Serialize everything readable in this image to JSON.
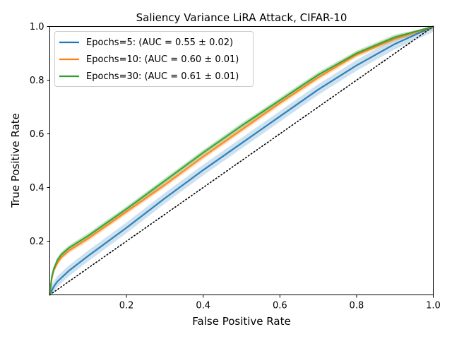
{
  "chart_data": {
    "type": "line",
    "title": "Saliency Variance LiRA Attack, CIFAR-10",
    "xlabel": "False Positive Rate",
    "ylabel": "True Positive Rate",
    "xlim": [
      0,
      1
    ],
    "ylim": [
      0,
      1
    ],
    "x_ticks": [
      0.2,
      0.4,
      0.6,
      0.8,
      1.0
    ],
    "x_tick_labels": [
      "0.2",
      "0.4",
      "0.6",
      "0.8",
      "1.0"
    ],
    "y_ticks": [
      0.2,
      0.4,
      0.6,
      0.8,
      1.0
    ],
    "y_tick_labels": [
      "0.2",
      "0.4",
      "0.6",
      "0.8",
      "1.0"
    ],
    "grid": false,
    "legend_position": "top-left",
    "baseline": {
      "style": "dotted",
      "color": "#000000",
      "x": [
        0,
        1
      ],
      "y": [
        0,
        1
      ]
    },
    "series": [
      {
        "name": "Epochs=5: (AUC = 0.55 ± 0.02)",
        "color": "#1f77b4",
        "x": [
          0,
          0.01,
          0.02,
          0.05,
          0.1,
          0.2,
          0.3,
          0.4,
          0.5,
          0.6,
          0.7,
          0.8,
          0.9,
          1.0
        ],
        "y": [
          0,
          0.03,
          0.05,
          0.09,
          0.145,
          0.25,
          0.36,
          0.465,
          0.565,
          0.665,
          0.765,
          0.855,
          0.935,
          1.0
        ],
        "band": 0.02
      },
      {
        "name": "Epochs=10: (AUC = 0.60 ± 0.01)",
        "color": "#ff7f0e",
        "x": [
          0,
          0.005,
          0.01,
          0.02,
          0.03,
          0.05,
          0.1,
          0.2,
          0.3,
          0.4,
          0.5,
          0.6,
          0.7,
          0.8,
          0.9,
          1.0
        ],
        "y": [
          0,
          0.06,
          0.09,
          0.12,
          0.14,
          0.165,
          0.21,
          0.31,
          0.41,
          0.515,
          0.615,
          0.715,
          0.81,
          0.895,
          0.955,
          1.0
        ],
        "band": 0.01
      },
      {
        "name": "Epochs=30: (AUC = 0.61 ± 0.01)",
        "color": "#2ca02c",
        "x": [
          0,
          0.005,
          0.01,
          0.02,
          0.03,
          0.05,
          0.1,
          0.2,
          0.3,
          0.4,
          0.5,
          0.6,
          0.7,
          0.8,
          0.9,
          1.0
        ],
        "y": [
          0,
          0.065,
          0.095,
          0.13,
          0.15,
          0.175,
          0.22,
          0.32,
          0.425,
          0.53,
          0.63,
          0.725,
          0.82,
          0.9,
          0.96,
          1.0
        ],
        "band": 0.01
      }
    ]
  }
}
